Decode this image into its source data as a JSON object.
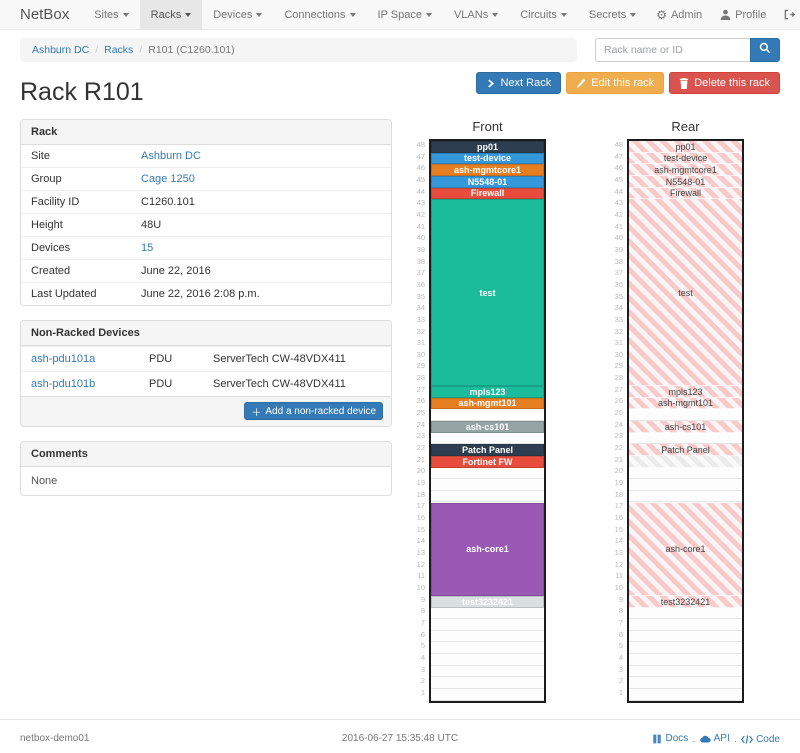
{
  "nav": {
    "brand": "NetBox",
    "items": [
      {
        "label": "Sites",
        "active": false
      },
      {
        "label": "Racks",
        "active": true
      },
      {
        "label": "Devices",
        "active": false
      },
      {
        "label": "Connections",
        "active": false
      },
      {
        "label": "IP Space",
        "active": false
      },
      {
        "label": "VLANs",
        "active": false
      },
      {
        "label": "Circuits",
        "active": false
      },
      {
        "label": "Secrets",
        "active": false
      }
    ],
    "right_items": [
      {
        "label": "Admin",
        "icon": "gear-icon"
      },
      {
        "label": "Profile",
        "icon": "user-icon"
      },
      {
        "label": "Log out",
        "icon": "log-out-icon"
      }
    ]
  },
  "breadcrumb": [
    {
      "label": "Ashburn DC",
      "link": true
    },
    {
      "label": "Racks",
      "link": true
    },
    {
      "label": "R101 (C1260.101)",
      "link": false
    }
  ],
  "search": {
    "placeholder": "Rack name or ID"
  },
  "actions": {
    "next": "Next Rack",
    "edit": "Edit this rack",
    "delete": "Delete this rack"
  },
  "page_title": "Rack R101",
  "rack_panel": {
    "title": "Rack",
    "rows": [
      {
        "label": "Site",
        "value": "Ashburn DC",
        "link": true
      },
      {
        "label": "Group",
        "value": "Cage 1250",
        "link": true
      },
      {
        "label": "Facility ID",
        "value": "C1260.101",
        "link": false
      },
      {
        "label": "Height",
        "value": "48U",
        "link": false
      },
      {
        "label": "Devices",
        "value": "15",
        "link": true
      },
      {
        "label": "Created",
        "value": "June 22, 2016",
        "link": false
      },
      {
        "label": "Last Updated",
        "value": "June 22, 2016 2:08 p.m.",
        "link": false
      }
    ]
  },
  "non_racked": {
    "title": "Non-Racked Devices",
    "rows": [
      {
        "name": "ash-pdu101a",
        "type": "PDU",
        "model": "ServerTech CW-48VDX411"
      },
      {
        "name": "ash-pdu101b",
        "type": "PDU",
        "model": "ServerTech CW-48VDX411"
      }
    ],
    "add_button": "Add a non-racked device"
  },
  "comments": {
    "title": "Comments",
    "body": "None"
  },
  "elevations": {
    "front_title": "Front",
    "rear_title": "Rear",
    "total_units": 48,
    "colors": {
      "dark": "#2c3e50",
      "blue": "#3498db",
      "orange": "#e67e22",
      "red": "#e74c3c",
      "teal": "#1abc9c",
      "gray": "#95a5a6",
      "purple": "#9b59b6",
      "lightgray": "#dadfe1"
    },
    "devices": [
      {
        "name": "pp01",
        "top_u": 48,
        "units": 1,
        "color": "dark",
        "rear": "striped"
      },
      {
        "name": "test-device",
        "top_u": 47,
        "units": 1,
        "color": "blue",
        "rear": "striped"
      },
      {
        "name": "ash-mgmtcore1",
        "top_u": 46,
        "units": 1,
        "color": "orange",
        "rear": "striped"
      },
      {
        "name": "N5548-01",
        "top_u": 45,
        "units": 1,
        "color": "blue",
        "rear": "striped"
      },
      {
        "name": "Firewall",
        "top_u": 44,
        "units": 1,
        "color": "red",
        "rear": "striped"
      },
      {
        "name": "test",
        "top_u": 43,
        "units": 16,
        "color": "teal",
        "rear": "striped"
      },
      {
        "name": "mpls123",
        "top_u": 27,
        "units": 1,
        "color": "teal",
        "rear": "striped"
      },
      {
        "name": "ash-mgmt101",
        "top_u": 26,
        "units": 1,
        "color": "orange",
        "rear": "striped"
      },
      {
        "name": "ash-cs101",
        "top_u": 24,
        "units": 1,
        "color": "gray",
        "rear": "striped"
      },
      {
        "name": "Patch Panel",
        "top_u": 22,
        "units": 1,
        "color": "dark",
        "rear": "striped"
      },
      {
        "name": "Fortinet FW",
        "top_u": 21,
        "units": 1,
        "color": "red",
        "rear": "occupied-hidden"
      },
      {
        "name": "ash-core1",
        "top_u": 17,
        "units": 8,
        "color": "purple",
        "rear": "striped"
      },
      {
        "name": "test3232421",
        "top_u": 9,
        "units": 1,
        "color": "lightgray",
        "rear": "striped"
      }
    ]
  },
  "footer": {
    "hostname": "netbox-demo01",
    "timestamp": "2016-06-27 15:35:48 UTC",
    "links": [
      {
        "label": "Docs",
        "icon": "book-icon"
      },
      {
        "label": "API",
        "icon": "cloud-icon"
      },
      {
        "label": "Code",
        "icon": "code-icon"
      }
    ]
  }
}
